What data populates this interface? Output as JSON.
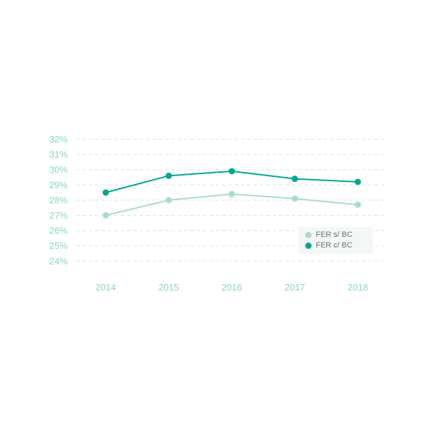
{
  "page": {
    "background": "#ffffff"
  },
  "chart_data": {
    "type": "line",
    "title": "",
    "xlabel": "",
    "ylabel": "",
    "categories": [
      "2014",
      "2015",
      "2016",
      "2017",
      "2018"
    ],
    "series": [
      {
        "name": "FER s/ BC",
        "color": "#a9dbcd",
        "values": [
          27.0,
          28.0,
          28.4,
          28.1,
          27.7
        ]
      },
      {
        "name": "FER c/ BC",
        "color": "#00a78e",
        "values": [
          28.5,
          29.6,
          29.9,
          29.4,
          29.2
        ]
      }
    ],
    "ylim": [
      24,
      32
    ],
    "ytick_step": 1,
    "ytick_suffix": "%",
    "grid": true,
    "grid_style": "dashed",
    "legend_position": "right-center",
    "colors": {
      "grid": "#cfeae3",
      "tick_labels": "#84d6c6",
      "legend_text": "#6f6f6f",
      "legend_background": "#f3f8f7"
    }
  }
}
